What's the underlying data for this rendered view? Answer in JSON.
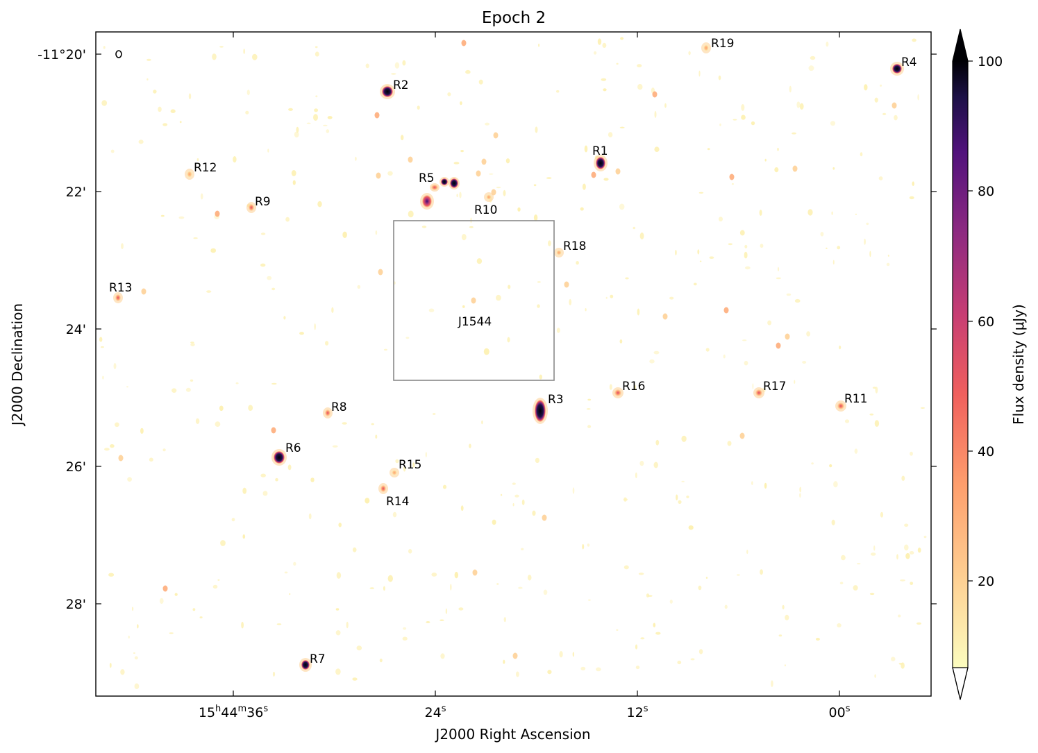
{
  "figure": {
    "title": "Epoch 2",
    "xlabel": "J2000 Right Ascension",
    "ylabel": "J2000 Declination",
    "colorbar_label": "Flux density (μJy)",
    "colorbar_ticks": [
      "20",
      "40",
      "60",
      "80",
      "100"
    ],
    "colormap": "magma_r",
    "colors": {
      "low": "#fcfdbf",
      "mid_low": "#fe9f6d",
      "mid": "#de4968",
      "mid_high": "#8c2981",
      "high": "#3b0f70",
      "max": "#000004"
    },
    "ra_ticks": [
      {
        "h": "15",
        "m": "44",
        "s": "36",
        "label_type": "full"
      },
      {
        "s": "24",
        "label_type": "seconds"
      },
      {
        "s": "12",
        "label_type": "seconds"
      },
      {
        "s": "00",
        "label_type": "seconds"
      }
    ],
    "dec_ticks": [
      "-11°20'",
      "22'",
      "24'",
      "26'",
      "28'"
    ],
    "target_label": "J1544",
    "sources": [
      {
        "name": "R1",
        "flux": 100
      },
      {
        "name": "R2",
        "flux": 100
      },
      {
        "name": "R3",
        "flux": 100
      },
      {
        "name": "R4",
        "flux": 100
      },
      {
        "name": "R5",
        "flux": 70
      },
      {
        "name": "R6",
        "flux": 100
      },
      {
        "name": "R7",
        "flux": 95
      },
      {
        "name": "R8",
        "flux": 45
      },
      {
        "name": "R9",
        "flux": 40
      },
      {
        "name": "R10",
        "flux": 30
      },
      {
        "name": "R11",
        "flux": 45
      },
      {
        "name": "R12",
        "flux": 30
      },
      {
        "name": "R13",
        "flux": 40
      },
      {
        "name": "R14",
        "flux": 35
      },
      {
        "name": "R15",
        "flux": 30
      },
      {
        "name": "R16",
        "flux": 40
      },
      {
        "name": "R17",
        "flux": 40
      },
      {
        "name": "R18",
        "flux": 30
      },
      {
        "name": "R19",
        "flux": 30
      }
    ]
  }
}
